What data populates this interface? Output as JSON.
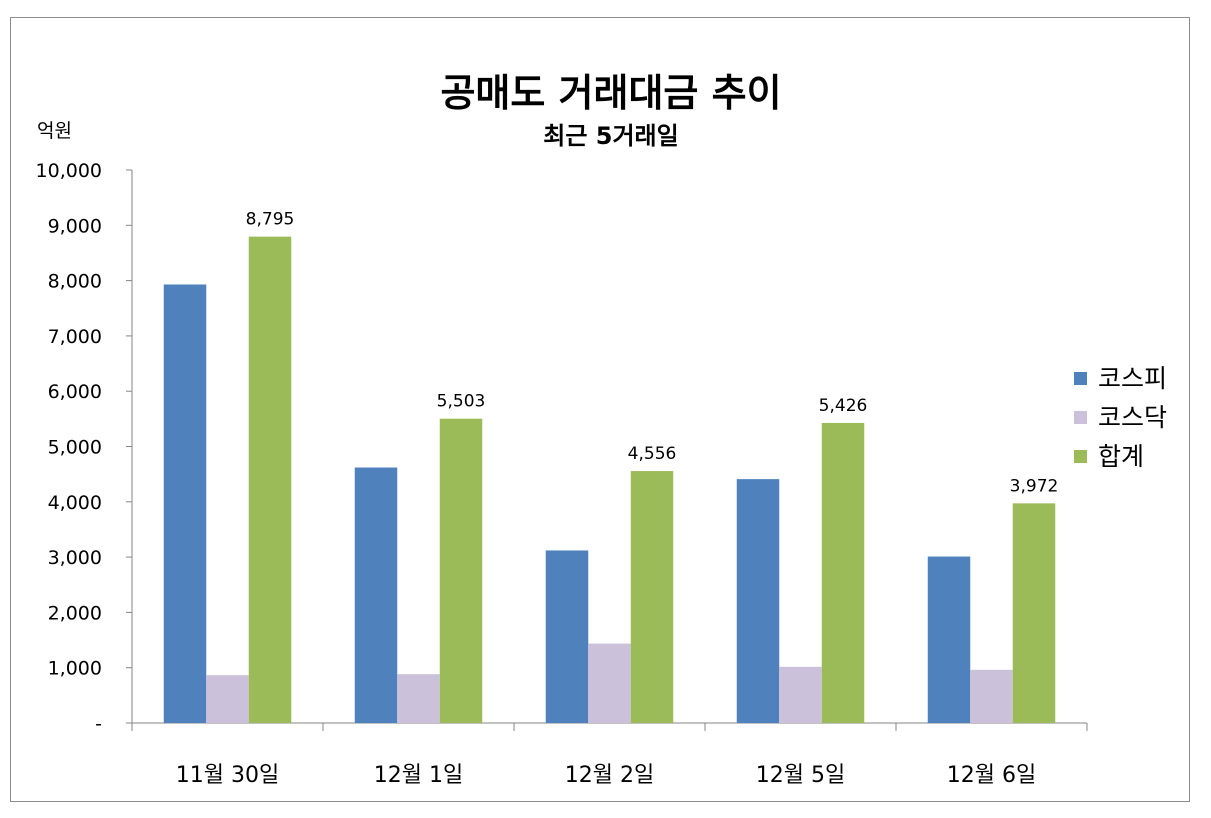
{
  "chart_data": {
    "type": "bar",
    "title": "공매도 거래대금 추이",
    "subtitle": "최근 5거래일",
    "ylabel": "억원",
    "categories": [
      "11월 30일",
      "12월 1일",
      "12월 2일",
      "12월 5일",
      "12월 6일"
    ],
    "ylim": [
      0,
      10000
    ],
    "yticks": [
      0,
      1000,
      2000,
      3000,
      4000,
      5000,
      6000,
      7000,
      8000,
      9000,
      10000
    ],
    "ytick_labels": [
      "-",
      "1,000",
      "2,000",
      "3,000",
      "4,000",
      "5,000",
      "6,000",
      "7,000",
      "8,000",
      "9,000",
      "10,000"
    ],
    "series": [
      {
        "name": "코스피",
        "color": "#4f81bd",
        "values": [
          7930,
          4620,
          3120,
          4410,
          3010
        ]
      },
      {
        "name": "코스닥",
        "color": "#ccc1da",
        "values": [
          865,
          883,
          1436,
          1016,
          962
        ]
      },
      {
        "name": "합계",
        "color": "#9bbb59",
        "values": [
          8795,
          5503,
          4556,
          5426,
          3972
        ],
        "labels": [
          "8,795",
          "5,503",
          "4,556",
          "5,426",
          "3,972"
        ]
      }
    ],
    "grid": false,
    "legend": "right"
  }
}
